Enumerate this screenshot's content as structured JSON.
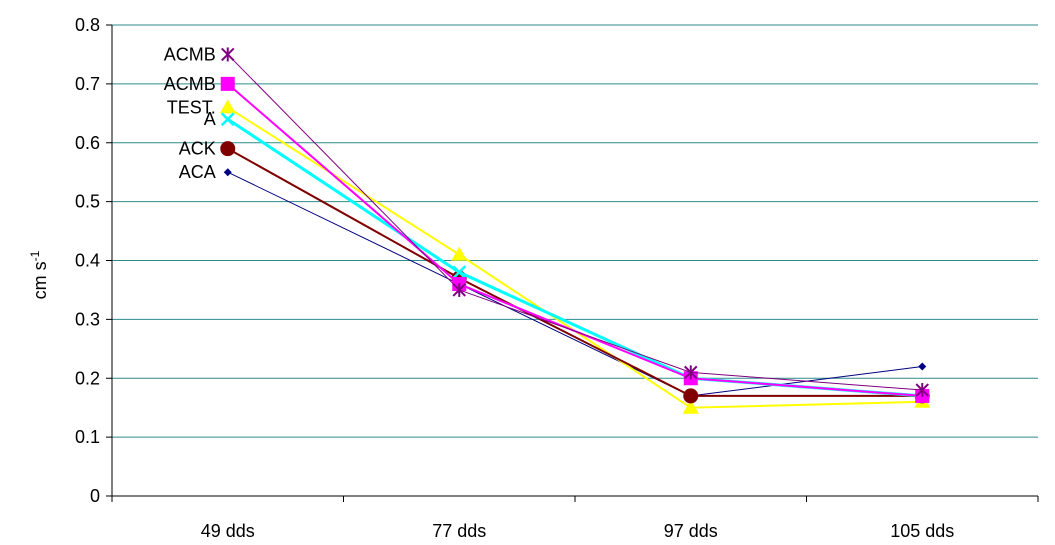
{
  "chart_data": {
    "type": "line",
    "categories": [
      "49 dds",
      "77 dds",
      "97 dds",
      "105 dds"
    ],
    "ylim": [
      0,
      0.8
    ],
    "yticks": [
      "0",
      "0.1",
      "0.2",
      "0.3",
      "0.4",
      "0.5",
      "0.6",
      "0.7",
      "0.8"
    ],
    "ylabel": "cm s",
    "ylabel_superscript": "-1",
    "grid": true,
    "gridline_color": "#2e8b8b",
    "series": [
      {
        "label": "ACA",
        "values": [
          0.55,
          0.36,
          0.17,
          0.22
        ],
        "color": "#000080",
        "marker": "diamond",
        "line_width": 1
      },
      {
        "values": [
          0.66,
          0.41,
          0.15,
          0.16
        ],
        "color": "#ffff00",
        "marker": "triangle",
        "line_width": 2
      },
      {
        "label": "ACK",
        "values": [
          0.59,
          0.37,
          0.17,
          0.17
        ],
        "color": "#800000",
        "marker": "circle",
        "line_width": 2
      },
      {
        "label": "A",
        "values": [
          0.64,
          0.38,
          0.2,
          0.17
        ],
        "color": "#00ffff",
        "marker": "x",
        "line_width": 3
      },
      {
        "label": "ACMB",
        "values": [
          0.7,
          0.36,
          0.2,
          0.17
        ],
        "color": "#ff00ff",
        "marker": "square",
        "line_width": 2
      },
      {
        "label": "ACMB",
        "values": [
          0.75,
          0.35,
          0.21,
          0.18
        ],
        "color": "#800080",
        "marker": "star",
        "line_width": 1
      }
    ],
    "annotations": [
      {
        "text": "ACMB",
        "series_index": 5
      },
      {
        "text": "ACMB",
        "series_index": 4
      },
      {
        "text": "TEST.",
        "series_index": 1
      },
      {
        "text": "A",
        "series_index": 3
      },
      {
        "text": "ACK",
        "series_index": 2
      },
      {
        "text": "ACA",
        "series_index": 0
      }
    ],
    "extra_line": {
      "from_series": 1,
      "color": "#8b4513"
    }
  }
}
